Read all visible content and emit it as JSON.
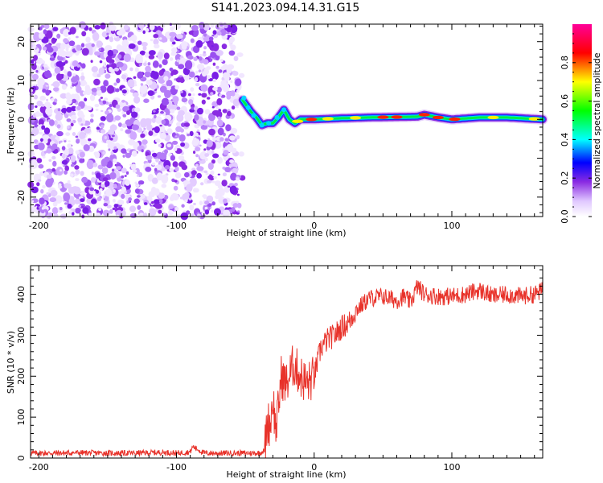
{
  "title": "S141.2023.094.14.31.G15",
  "chart_data": [
    {
      "type": "heatmap",
      "title": "S141.2023.094.14.31.G15",
      "xlabel": "Height of straight line (km)",
      "ylabel": "Frequency (Hz)",
      "xlim": [
        -206,
        166
      ],
      "ylim": [
        -25,
        24.5
      ],
      "xticks": [
        -200,
        -100,
        0,
        100
      ],
      "yticks": [
        -20,
        -10,
        0,
        10,
        20
      ],
      "grid": false,
      "noise_region_x": [
        -206,
        -52
      ],
      "signal_ridge": {
        "x": [
          -52,
          -46,
          -42,
          -38,
          -34,
          -30,
          -26,
          -22,
          -18,
          -14,
          -10,
          0,
          20,
          40,
          60,
          75,
          80,
          90,
          100,
          120,
          140,
          166
        ],
        "frequency": [
          5,
          2,
          0.5,
          -1.5,
          -1,
          -1,
          0.5,
          2.5,
          0,
          -1,
          0,
          0,
          0.3,
          0.5,
          0.6,
          0.7,
          1.2,
          0.5,
          0,
          0.5,
          0.5,
          0
        ]
      },
      "colorbar": {
        "label": "Normalized spectral amplitude",
        "range": [
          0,
          1
        ],
        "ticks": [
          0.0,
          0.2,
          0.4,
          0.6,
          0.8
        ],
        "tick_labels": [
          "0.0",
          "0.2",
          "0.4",
          "0.6",
          "0.8"
        ],
        "colors": [
          "#ffffff",
          "#8a2be2",
          "#0000ff",
          "#00ffff",
          "#00ff00",
          "#ffff00",
          "#ff0000",
          "#ff00aa"
        ]
      }
    },
    {
      "type": "line",
      "xlabel": "Height of straight line (km)",
      "ylabel": "SNR (10 * v/v)",
      "xlim": [
        -206,
        166
      ],
      "ylim": [
        0,
        470
      ],
      "xticks": [
        -200,
        -100,
        0,
        100
      ],
      "yticks": [
        0,
        100,
        200,
        300,
        400
      ],
      "grid": false,
      "series": [
        {
          "color": "#e8322a",
          "x": [
            -206,
            -190,
            -170,
            -150,
            -130,
            -110,
            -100,
            -90,
            -88,
            -80,
            -60,
            -40,
            -36,
            -34,
            -32,
            -30,
            -28,
            -26,
            -24,
            -20,
            -15,
            -10,
            -5,
            0,
            5,
            10,
            15,
            20,
            25,
            30,
            35,
            40,
            50,
            60,
            65,
            70,
            75,
            80,
            90,
            100,
            110,
            120,
            130,
            140,
            150,
            160,
            166
          ],
          "y": [
            12,
            12,
            13,
            12,
            12,
            14,
            12,
            15,
            28,
            12,
            12,
            12,
            18,
            90,
            80,
            150,
            70,
            120,
            200,
            180,
            230,
            200,
            180,
            200,
            270,
            290,
            300,
            320,
            330,
            360,
            375,
            390,
            395,
            385,
            395,
            380,
            420,
            400,
            395,
            395,
            400,
            410,
            395,
            400,
            395,
            400,
            410
          ]
        }
      ]
    }
  ]
}
